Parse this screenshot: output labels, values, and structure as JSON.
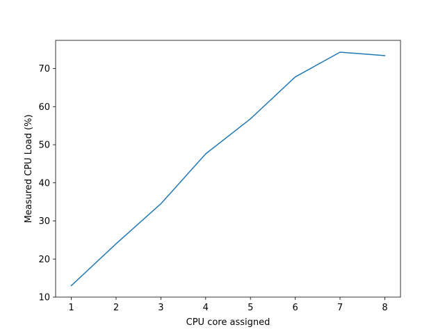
{
  "chart_data": {
    "type": "line",
    "title": "",
    "xlabel": "CPU core assigned",
    "ylabel": "Measured CPU Load (%)",
    "x": [
      1,
      2,
      3,
      4,
      5,
      6,
      7,
      8
    ],
    "series": [
      {
        "values": [
          13.0,
          24.0,
          34.5,
          47.6,
          56.8,
          67.8,
          74.3,
          73.4
        ],
        "color": "#1f77b4"
      }
    ],
    "xlim": [
      0.65,
      8.35
    ],
    "ylim": [
      10.0,
      77.4
    ],
    "xticks": [
      1,
      2,
      3,
      4,
      5,
      6,
      7,
      8
    ],
    "yticks": [
      10,
      20,
      30,
      40,
      50,
      60,
      70
    ],
    "grid": false,
    "legend": "none"
  }
}
